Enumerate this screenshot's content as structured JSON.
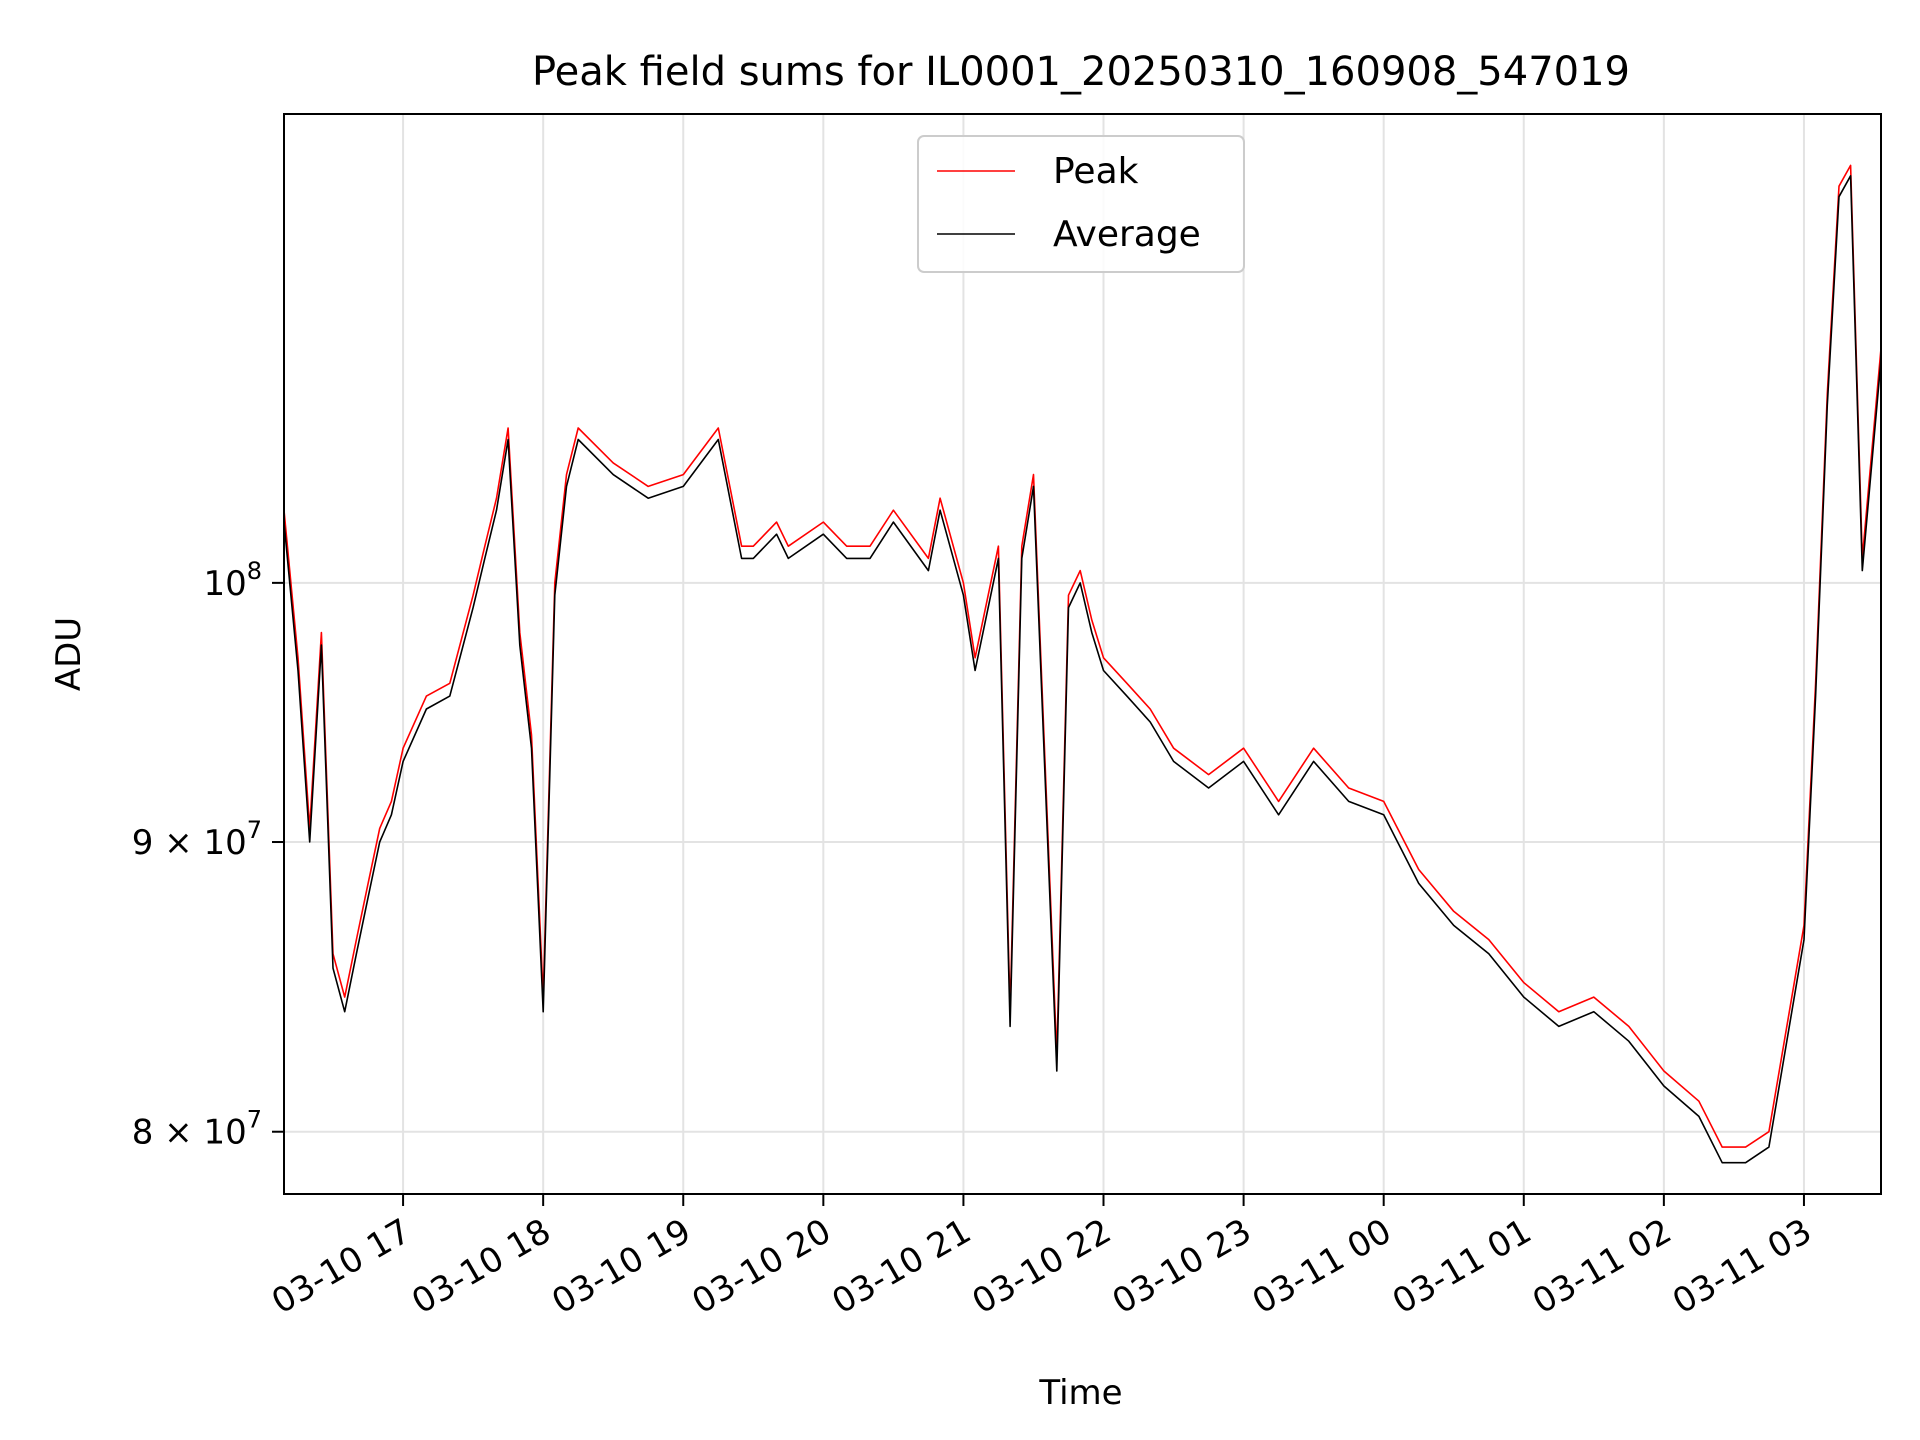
{
  "chart_data": {
    "type": "line",
    "title": "Peak field sums for IL0001_20250310_160908_547019",
    "xlabel": "Time",
    "ylabel": "ADU",
    "y_scale": "log",
    "ylim": [
      78000000,
      121000000
    ],
    "xlim": [
      "2025-03-10 16:09",
      "2025-03-11 03:33"
    ],
    "grid": true,
    "legend_position": "top-center",
    "x_ticks": [
      {
        "at": "2025-03-10 17:00",
        "label": "03-10 17"
      },
      {
        "at": "2025-03-10 18:00",
        "label": "03-10 18"
      },
      {
        "at": "2025-03-10 19:00",
        "label": "03-10 19"
      },
      {
        "at": "2025-03-10 20:00",
        "label": "03-10 20"
      },
      {
        "at": "2025-03-10 21:00",
        "label": "03-10 21"
      },
      {
        "at": "2025-03-10 22:00",
        "label": "03-10 22"
      },
      {
        "at": "2025-03-10 23:00",
        "label": "03-10 23"
      },
      {
        "at": "2025-03-11 00:00",
        "label": "03-11 00"
      },
      {
        "at": "2025-03-11 01:00",
        "label": "03-11 01"
      },
      {
        "at": "2025-03-11 02:00",
        "label": "03-11 02"
      },
      {
        "at": "2025-03-11 03:00",
        "label": "03-11 03"
      }
    ],
    "y_ticks": [
      {
        "value": 80000000,
        "base": "8",
        "exp": "7"
      },
      {
        "value": 90000000,
        "base": "9",
        "exp": "7"
      },
      {
        "value": 100000000,
        "base": "",
        "exp": "8"
      }
    ],
    "x": [
      "2025-03-10 16:09",
      "2025-03-10 16:15",
      "2025-03-10 16:20",
      "2025-03-10 16:25",
      "2025-03-10 16:30",
      "2025-03-10 16:35",
      "2025-03-10 16:40",
      "2025-03-10 16:45",
      "2025-03-10 16:50",
      "2025-03-10 16:55",
      "2025-03-10 17:00",
      "2025-03-10 17:10",
      "2025-03-10 17:20",
      "2025-03-10 17:30",
      "2025-03-10 17:35",
      "2025-03-10 17:40",
      "2025-03-10 17:45",
      "2025-03-10 17:50",
      "2025-03-10 17:55",
      "2025-03-10 18:00",
      "2025-03-10 18:05",
      "2025-03-10 18:10",
      "2025-03-10 18:15",
      "2025-03-10 18:30",
      "2025-03-10 18:45",
      "2025-03-10 19:00",
      "2025-03-10 19:15",
      "2025-03-10 19:25",
      "2025-03-10 19:30",
      "2025-03-10 19:40",
      "2025-03-10 19:45",
      "2025-03-10 20:00",
      "2025-03-10 20:10",
      "2025-03-10 20:20",
      "2025-03-10 20:30",
      "2025-03-10 20:45",
      "2025-03-10 20:50",
      "2025-03-10 21:00",
      "2025-03-10 21:05",
      "2025-03-10 21:15",
      "2025-03-10 21:20",
      "2025-03-10 21:25",
      "2025-03-10 21:30",
      "2025-03-10 21:40",
      "2025-03-10 21:45",
      "2025-03-10 21:50",
      "2025-03-10 21:55",
      "2025-03-10 22:00",
      "2025-03-10 22:10",
      "2025-03-10 22:20",
      "2025-03-10 22:30",
      "2025-03-10 22:45",
      "2025-03-10 23:00",
      "2025-03-10 23:15",
      "2025-03-10 23:30",
      "2025-03-10 23:45",
      "2025-03-11 00:00",
      "2025-03-11 00:15",
      "2025-03-11 00:30",
      "2025-03-11 00:45",
      "2025-03-11 01:00",
      "2025-03-11 01:15",
      "2025-03-11 01:30",
      "2025-03-11 01:45",
      "2025-03-11 02:00",
      "2025-03-11 02:15",
      "2025-03-11 02:25",
      "2025-03-11 02:35",
      "2025-03-11 02:45",
      "2025-03-11 03:00",
      "2025-03-11 03:05",
      "2025-03-11 03:10",
      "2025-03-11 03:15",
      "2025-03-11 03:20",
      "2025-03-11 03:25",
      "2025-03-11 03:33"
    ],
    "series": [
      {
        "name": "Peak",
        "color": "#ff0000",
        "values": [
          103000000,
          97000000,
          90500000,
          98000000,
          86000000,
          84500000,
          86500000,
          88500000,
          90500000,
          91500000,
          93500000,
          95500000,
          96000000,
          99500000,
          101500000,
          103500000,
          106500000,
          98000000,
          94000000,
          84500000,
          100000000,
          104500000,
          106500000,
          105000000,
          104000000,
          104500000,
          106500000,
          101500000,
          101500000,
          102500000,
          101500000,
          102500000,
          101500000,
          101500000,
          103000000,
          101000000,
          103500000,
          100000000,
          97000000,
          101500000,
          84000000,
          101500000,
          104500000,
          82500000,
          99500000,
          100500000,
          98500000,
          97000000,
          96000000,
          95000000,
          93500000,
          92500000,
          93500000,
          91500000,
          93500000,
          92000000,
          91500000,
          89000000,
          87500000,
          86500000,
          85000000,
          84000000,
          84500000,
          83500000,
          82000000,
          81000000,
          79500000,
          79500000,
          80000000,
          87000000,
          96000000,
          108000000,
          117500000,
          118500000,
          101000000,
          110000000
        ]
      },
      {
        "name": "Average",
        "color": "#000000",
        "values": [
          102500000,
          96500000,
          90000000,
          97500000,
          85500000,
          84000000,
          86000000,
          88000000,
          90000000,
          91000000,
          93000000,
          95000000,
          95500000,
          99000000,
          101000000,
          103000000,
          106000000,
          97500000,
          93500000,
          84000000,
          99500000,
          104000000,
          106000000,
          104500000,
          103500000,
          104000000,
          106000000,
          101000000,
          101000000,
          102000000,
          101000000,
          102000000,
          101000000,
          101000000,
          102500000,
          100500000,
          103000000,
          99500000,
          96500000,
          101000000,
          83500000,
          101000000,
          104000000,
          82000000,
          99000000,
          100000000,
          98000000,
          96500000,
          95500000,
          94500000,
          93000000,
          92000000,
          93000000,
          91000000,
          93000000,
          91500000,
          91000000,
          88500000,
          87000000,
          86000000,
          84500000,
          83500000,
          84000000,
          83000000,
          81500000,
          80500000,
          79000000,
          79000000,
          79500000,
          86500000,
          95500000,
          107500000,
          117000000,
          118000000,
          100500000,
          109500000
        ]
      }
    ]
  }
}
